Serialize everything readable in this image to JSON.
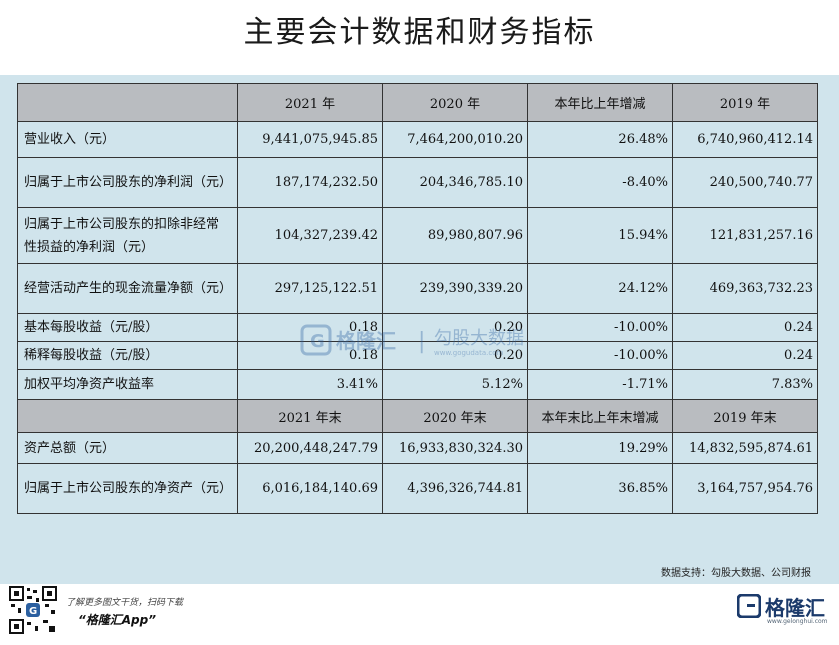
{
  "title": "主要会计数据和财务指标",
  "table": {
    "header1": [
      "",
      "2021 年",
      "2020 年",
      "本年比上年增减",
      "2019 年"
    ],
    "rows1": [
      [
        "营业收入（元）",
        "9,441,075,945.85",
        "7,464,200,010.20",
        "26.48%",
        "6,740,960,412.14"
      ],
      [
        "归属于上市公司股东的净利润（元）",
        "187,174,232.50",
        "204,346,785.10",
        "-8.40%",
        "240,500,740.77"
      ],
      [
        "归属于上市公司股东的扣除非经常性损益的净利润（元）",
        "104,327,239.42",
        "89,980,807.96",
        "15.94%",
        "121,831,257.16"
      ],
      [
        "经营活动产生的现金流量净额（元）",
        "297,125,122.51",
        "239,390,339.20",
        "24.12%",
        "469,363,732.23"
      ],
      [
        "基本每股收益（元/股）",
        "0.18",
        "0.20",
        "-10.00%",
        "0.24"
      ],
      [
        "稀释每股收益（元/股）",
        "0.18",
        "0.20",
        "-10.00%",
        "0.24"
      ],
      [
        "加权平均净资产收益率",
        "3.41%",
        "5.12%",
        "-1.71%",
        "7.83%"
      ]
    ],
    "header2": [
      "",
      "2021 年末",
      "2020 年末",
      "本年末比上年末增减",
      "2019 年末"
    ],
    "rows2": [
      [
        "资产总额（元）",
        "20,200,448,247.79",
        "16,933,830,324.30",
        "19.29%",
        "14,832,595,874.61"
      ],
      [
        "归属于上市公司股东的净资产（元）",
        "6,016,184,140.69",
        "4,396,326,744.81",
        "36.85%",
        "3,164,757,954.76"
      ]
    ]
  },
  "watermark": {
    "brand": "格隆汇",
    "divider": "|",
    "partner": "勾股大数据",
    "partner_url": "www.gogudata.com"
  },
  "source": "数据支持：勾股大数据、公司财报",
  "footer": {
    "promo_line1": "了解更多图文干货，扫码下载",
    "promo_line2": "“格隆汇App”",
    "brand": "格隆汇",
    "brand_url": "www.gelonghui.com",
    "qr_icon": "qr-code-icon",
    "logo_icon": "gelonghui-logo-icon"
  },
  "colors": {
    "panel_bg": "#d0e4ec",
    "header_bg": "#b9bcc0",
    "brand_blue": "#1b3a6b"
  }
}
